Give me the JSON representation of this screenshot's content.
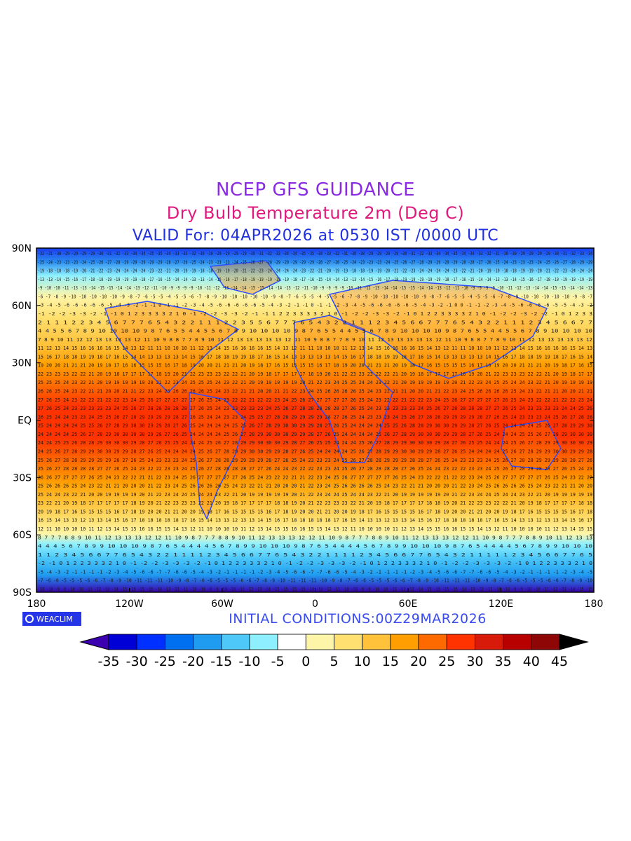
{
  "titles": {
    "line1": "NCEP GFS GUIDANCE",
    "line2": "Dry Bulb Temperature 2m (Deg C)",
    "line3": "VALID For: 04APR2026 at 0530 IST /0000 UTC"
  },
  "footer": {
    "logo_text": "WEACLIM",
    "initial_conditions": "INITIAL CONDITIONS:00Z29MAR2026"
  },
  "map": {
    "lat_labels": [
      "90N",
      "60N",
      "30N",
      "EQ",
      "30S",
      "60S",
      "90S"
    ],
    "lon_labels": [
      "180",
      "120W",
      "60W",
      "0",
      "60E",
      "120E",
      "180"
    ]
  },
  "colorbar": {
    "ticks": [
      "-35",
      "-30",
      "-25",
      "-20",
      "-15",
      "-10",
      "-5",
      "0",
      "5",
      "10",
      "15",
      "20",
      "25",
      "30",
      "35",
      "40",
      "45"
    ],
    "colors": [
      "#3b00b0",
      "#0000d6",
      "#0030ff",
      "#0070f0",
      "#1f9cf0",
      "#4ec8f8",
      "#8ef0ff",
      "#ffffff",
      "#fff5a8",
      "#ffe070",
      "#ffc23a",
      "#ff9e00",
      "#ff6a00",
      "#ff3300",
      "#d81a0a",
      "#b80000",
      "#8e0606",
      "#000000"
    ]
  }
}
